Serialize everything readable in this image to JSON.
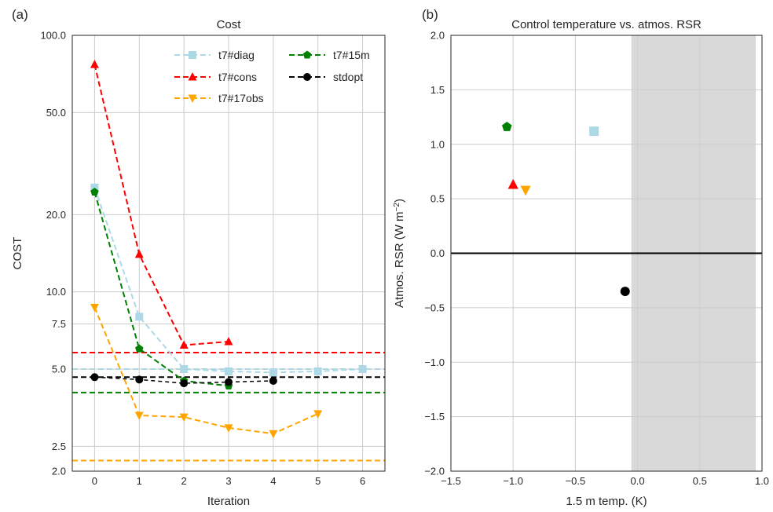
{
  "chart_data": [
    {
      "panel_label": "(a)",
      "type": "line",
      "title": "Cost",
      "xlabel": "Iteration",
      "ylabel": "COST",
      "yscale": "log",
      "xlim": [
        -0.5,
        6.5
      ],
      "ylim": [
        2.0,
        100.0
      ],
      "xticks": [
        0,
        1,
        2,
        3,
        4,
        5,
        6
      ],
      "xtick_labels": [
        "0",
        "1",
        "2",
        "3",
        "4",
        "5",
        "6"
      ],
      "yticks": [
        2.0,
        2.5,
        5.0,
        7.5,
        10.0,
        20.0,
        50.0,
        100.0
      ],
      "ytick_labels": [
        "2.0",
        "2.5",
        "5.0",
        "7.5",
        "10.0",
        "20.0",
        "50.0",
        "100.0"
      ],
      "grid": true,
      "legend_position": "top-right",
      "series": [
        {
          "name": "t7#diag",
          "color": "#add8e6",
          "marker": "square",
          "x": [
            0,
            1,
            2,
            3,
            4,
            5,
            6
          ],
          "y": [
            25.5,
            8.0,
            5.0,
            4.9,
            4.85,
            4.9,
            5.0
          ],
          "reference_line": 5.0
        },
        {
          "name": "t7#cons",
          "color": "#ff0000",
          "marker": "triangle-up",
          "x": [
            0,
            1,
            2,
            3
          ],
          "y": [
            77,
            14,
            6.2,
            6.4
          ],
          "reference_line": 5.8
        },
        {
          "name": "t7#17obs",
          "color": "#ffa500",
          "marker": "triangle-down",
          "x": [
            0,
            1,
            2,
            3,
            4,
            5
          ],
          "y": [
            8.7,
            3.3,
            3.25,
            2.95,
            2.8,
            3.35
          ],
          "reference_line": 2.2
        },
        {
          "name": "t7#15m",
          "color": "#008000",
          "marker": "pentagon",
          "x": [
            0,
            1,
            2,
            3
          ],
          "y": [
            24.5,
            6.0,
            4.5,
            4.3
          ],
          "reference_line": 4.05
        },
        {
          "name": "stdopt",
          "color": "#000000",
          "marker": "circle",
          "x": [
            0,
            1,
            2,
            3,
            4
          ],
          "y": [
            4.65,
            4.55,
            4.4,
            4.45,
            4.5
          ],
          "reference_line": 4.65
        }
      ]
    },
    {
      "panel_label": "(b)",
      "type": "scatter",
      "title": "Control temperature vs. atmos. RSR",
      "xlabel": "1.5 m temp. (K)",
      "ylabel": "Atmos. RSR (W m",
      "ylabel_sup": "−2",
      "ylabel_end": ")",
      "xlim": [
        -1.5,
        1.0
      ],
      "ylim": [
        -2.0,
        2.0
      ],
      "xticks": [
        -1.5,
        -1.0,
        -0.5,
        0.0,
        0.5,
        1.0
      ],
      "xtick_labels": [
        "−1.5",
        "−1.0",
        "−0.5",
        "0.0",
        "0.5",
        "1.0"
      ],
      "yticks": [
        -2.0,
        -1.5,
        -1.0,
        -0.5,
        0.0,
        0.5,
        1.0,
        1.5,
        2.0
      ],
      "ytick_labels": [
        "−2.0",
        "−1.5",
        "−1.0",
        "−0.5",
        "0.0",
        "0.5",
        "1.0",
        "1.5",
        "2.0"
      ],
      "grid": true,
      "shaded_x_range": [
        -0.05,
        0.95
      ],
      "zero_line_y": 0.0,
      "points": [
        {
          "name": "t7#diag",
          "color": "#add8e6",
          "marker": "square",
          "x": -0.35,
          "y": 1.12
        },
        {
          "name": "t7#15m",
          "color": "#008000",
          "marker": "pentagon",
          "x": -1.05,
          "y": 1.16
        },
        {
          "name": "t7#cons",
          "color": "#ff0000",
          "marker": "triangle-up",
          "x": -1.0,
          "y": 0.63
        },
        {
          "name": "t7#17obs",
          "color": "#ffa500",
          "marker": "triangle-down",
          "x": -0.9,
          "y": 0.58
        },
        {
          "name": "stdopt",
          "color": "#000000",
          "marker": "circle",
          "x": -0.1,
          "y": -0.35
        }
      ]
    }
  ]
}
